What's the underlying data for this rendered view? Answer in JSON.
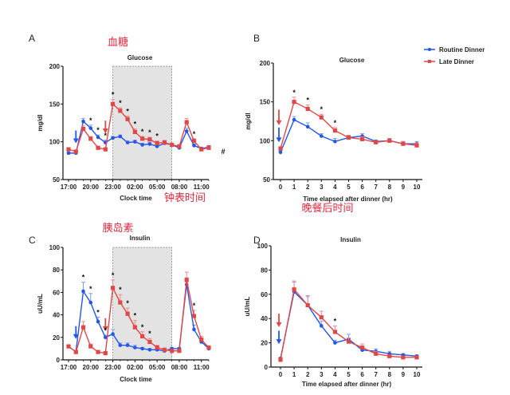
{
  "colors": {
    "routine": "#2456e8",
    "late": "#e04848",
    "late_err": "#f08a8a",
    "routine_err": "#7a9cf0",
    "shade": "#e3e3e3",
    "annotation_cn": "#e0293f"
  },
  "legend": {
    "items": [
      {
        "label": "Routine Dinner",
        "series": "routine"
      },
      {
        "label": "Late Dinner",
        "series": "late"
      }
    ]
  },
  "annotations": {
    "glucose_cn": "血糖",
    "insulin_cn": "胰岛素",
    "clock_time_cn": "钟表时间",
    "elapsed_cn": "晚餐后时间",
    "hash": "#"
  },
  "chart_data": [
    {
      "id": "A",
      "panel_letter": "A",
      "type": "line",
      "title": "Glucose",
      "xlabel": "Clock time",
      "ylabel": "mg/dl",
      "ylim": [
        50,
        200
      ],
      "yticks": [
        50,
        100,
        150,
        200
      ],
      "x_unit": "hours from 17:00",
      "xlim": [
        0,
        19
      ],
      "xtick_positions": [
        0,
        3,
        6,
        9,
        12,
        15,
        18
      ],
      "xtick_labels": [
        "17:00",
        "20:00",
        "23:00",
        "02:00",
        "05:00",
        "08:00",
        "11:00"
      ],
      "shaded_region": [
        6,
        14
      ],
      "x": [
        0,
        1,
        2,
        3,
        4,
        5,
        6,
        7,
        8,
        9,
        10,
        11,
        12,
        13,
        14,
        15,
        16,
        17,
        18,
        19
      ],
      "series": [
        {
          "name": "Routine Dinner",
          "key": "routine",
          "values": [
            85,
            85,
            127,
            118,
            106,
            99,
            105,
            107,
            99,
            100,
            96,
            97,
            94,
            98,
            96,
            92,
            114,
            95,
            91,
            93
          ],
          "errors": [
            1,
            1,
            4,
            4,
            3,
            3,
            2,
            2,
            2,
            2,
            2,
            2,
            2,
            2,
            2,
            1,
            4,
            2,
            2,
            2
          ],
          "dinner_arrow_x": 1
        },
        {
          "name": "Late Dinner",
          "key": "late",
          "values": [
            90,
            87,
            117,
            104,
            92,
            90,
            150,
            141,
            130,
            113,
            104,
            103,
            98,
            99,
            96,
            94,
            126,
            101,
            90,
            92
          ],
          "errors": [
            2,
            2,
            4,
            3,
            2,
            2,
            6,
            4,
            4,
            4,
            3,
            3,
            3,
            3,
            2,
            2,
            5,
            3,
            2,
            2
          ],
          "dinner_arrow_x": 5
        }
      ],
      "significance_x": [
        3,
        4,
        5,
        6,
        7,
        8,
        9,
        10,
        11,
        12,
        17
      ],
      "hash_marker": true
    },
    {
      "id": "B",
      "panel_letter": "B",
      "type": "line",
      "title": "Glucose",
      "xlabel": "Time elapsed after dinner (hr)",
      "ylabel": "mg/dl",
      "ylim": [
        50,
        200
      ],
      "yticks": [
        50,
        100,
        150,
        200
      ],
      "xlim": [
        0,
        10
      ],
      "xtick_positions": [
        0,
        1,
        2,
        3,
        4,
        5,
        6,
        7,
        8,
        9,
        10
      ],
      "xtick_labels": [
        "0",
        "1",
        "2",
        "3",
        "4",
        "5",
        "6",
        "7",
        "8",
        "9",
        "10"
      ],
      "x": [
        0,
        1,
        2,
        3,
        4,
        5,
        6,
        7,
        8,
        9,
        10
      ],
      "series": [
        {
          "name": "Routine Dinner",
          "key": "routine",
          "values": [
            85,
            127,
            118,
            106,
            99,
            104,
            106,
            99,
            100,
            96,
            96
          ],
          "errors": [
            2,
            4,
            5,
            3,
            4,
            3,
            3,
            2,
            3,
            3,
            3
          ]
        },
        {
          "name": "Late Dinner",
          "key": "late",
          "values": [
            90,
            150,
            141,
            130,
            113,
            104,
            102,
            98,
            100,
            96,
            94
          ],
          "errors": [
            2,
            6,
            5,
            4,
            4,
            3,
            3,
            2,
            2,
            3,
            3
          ]
        }
      ],
      "significance_x": [
        1,
        2,
        3,
        4
      ],
      "arrows": [
        {
          "key": "late",
          "y_top": 140,
          "y_tip": 120
        },
        {
          "key": "routine",
          "y_top": 117,
          "y_tip": 98
        }
      ]
    },
    {
      "id": "C",
      "panel_letter": "C",
      "type": "line",
      "title": "Insulin",
      "xlabel": "Clock time",
      "ylabel": "uU/mL",
      "ylim": [
        0,
        100
      ],
      "yticks": [
        0,
        20,
        40,
        60,
        80,
        100
      ],
      "x_unit": "hours from 17:00",
      "xlim": [
        0,
        19
      ],
      "xtick_positions": [
        0,
        3,
        6,
        9,
        12,
        15,
        18
      ],
      "xtick_labels": [
        "17:00",
        "20:00",
        "23:00",
        "02:00",
        "05:00",
        "08:00",
        "11:00"
      ],
      "shaded_region": [
        6,
        14
      ],
      "x": [
        0,
        1,
        2,
        3,
        4,
        5,
        6,
        7,
        8,
        9,
        10,
        11,
        12,
        13,
        14,
        15,
        16,
        17,
        18,
        19
      ],
      "series": [
        {
          "name": "Routine Dinner",
          "key": "routine",
          "values": [
            12,
            7,
            61,
            51,
            34,
            20,
            23,
            13,
            13,
            11,
            10,
            9,
            9,
            8,
            10,
            10,
            67,
            27,
            16,
            10
          ],
          "errors": [
            1,
            1,
            8,
            8,
            4,
            2,
            4,
            2,
            2,
            2,
            1,
            1,
            1,
            1,
            1,
            1,
            6,
            4,
            2,
            1
          ],
          "dinner_arrow_x": 1
        },
        {
          "name": "Late Dinner",
          "key": "late",
          "values": [
            12,
            7,
            29,
            12,
            7,
            6,
            64,
            51,
            41,
            29,
            21,
            16,
            11,
            9,
            8,
            8,
            71,
            39,
            18,
            11
          ],
          "errors": [
            1,
            1,
            5,
            2,
            1,
            1,
            7,
            7,
            5,
            6,
            4,
            3,
            2,
            1,
            1,
            1,
            7,
            5,
            3,
            1
          ],
          "dinner_arrow_x": 5
        }
      ],
      "significance_x": [
        2,
        3,
        4,
        5,
        6,
        7,
        8,
        9,
        10,
        11,
        17
      ]
    },
    {
      "id": "D",
      "panel_letter": "D",
      "type": "line",
      "title": "Insulin",
      "xlabel": "Time elapsed after dinner (hr)",
      "ylabel": "uU/mL",
      "ylim": [
        0,
        100
      ],
      "yticks": [
        0,
        20,
        40,
        60,
        80,
        100
      ],
      "xlim": [
        0,
        10
      ],
      "xtick_positions": [
        0,
        1,
        2,
        3,
        4,
        5,
        6,
        7,
        8,
        9,
        10
      ],
      "xtick_labels": [
        "0",
        "1",
        "2",
        "3",
        "4",
        "5",
        "6",
        "7",
        "8",
        "9",
        "10"
      ],
      "x": [
        0,
        1,
        2,
        3,
        4,
        5,
        6,
        7,
        8,
        9,
        10
      ],
      "series": [
        {
          "name": "Routine Dinner",
          "key": "routine",
          "values": [
            7,
            62,
            51,
            34,
            20,
            23,
            14,
            13,
            11,
            10,
            9
          ],
          "errors": [
            1,
            8,
            8,
            4,
            2,
            4,
            2,
            2,
            2,
            1,
            1
          ]
        },
        {
          "name": "Late Dinner",
          "key": "late",
          "values": [
            6,
            64,
            51,
            41,
            29,
            21,
            16,
            11,
            9,
            8,
            8
          ],
          "errors": [
            1,
            7,
            7,
            5,
            5,
            3,
            3,
            2,
            1,
            1,
            1
          ]
        }
      ],
      "significance_x": [
        4
      ],
      "arrows": [
        {
          "key": "late",
          "y_top": 44,
          "y_tip": 33
        },
        {
          "key": "routine",
          "y_top": 30,
          "y_tip": 19
        }
      ]
    }
  ]
}
